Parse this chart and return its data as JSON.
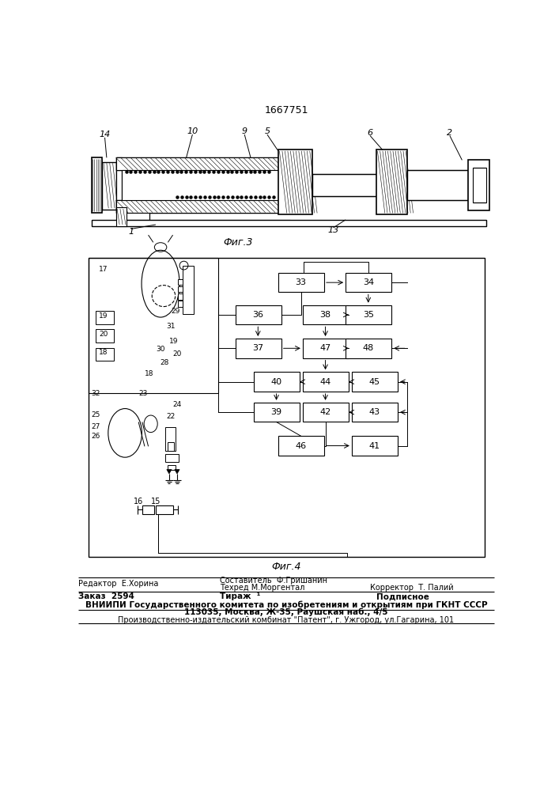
{
  "patent_number": "1667751",
  "fig3_label": "Фиг.3",
  "fig4_label": "Фиг.4",
  "bg_color": "#ffffff",
  "line_color": "#000000",
  "editor_line": "Редактор  Е.Хорина",
  "composer_line": "Составитель  Ф.Гришанин",
  "techred_line": "Техред М.Моргентал",
  "corrector_line": "Корректор  Т. Палий",
  "order_line": "Заказ  2594",
  "tirazh_line": "Тираж  ¹",
  "podpisnoe_line": "Подписное",
  "vniiipi_line": "ВНИИПИ Государственного комитета по изобретениям и открытиям при ГКНТ СССР",
  "address_line": "113035, Москва, Ж-35, Раушская наб., 4/5",
  "proizv_line": "Производственно-издательский комбинат \"Патент\", г. Ужгород, ул.Гагарина, 101"
}
